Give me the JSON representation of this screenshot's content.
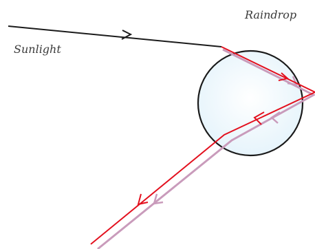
{
  "labels": {
    "raindrop": "Raindrop",
    "sunlight": "Sunlight"
  },
  "colors": {
    "incident_ray": "#1a1a1a",
    "red_ray": "#e3101e",
    "violet_ray": "#c99bbb",
    "drop_fill": "#e4f3fb",
    "drop_outline": "#1a1a1a"
  }
}
